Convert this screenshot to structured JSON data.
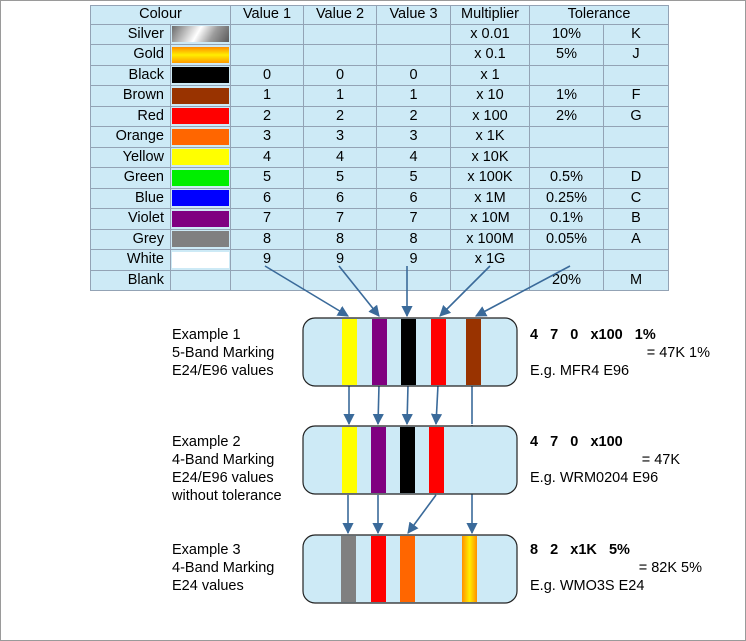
{
  "table": {
    "headers": [
      "Colour",
      "Value 1",
      "Value 2",
      "Value 3",
      "Multiplier",
      "Tolerance"
    ],
    "rows": [
      {
        "colour": "Silver",
        "swatch": "silver",
        "v1": "",
        "v2": "",
        "v3": "",
        "mult": "x 0.01",
        "tol": "10%",
        "code": "K"
      },
      {
        "colour": "Gold",
        "swatch": "gold",
        "v1": "",
        "v2": "",
        "v3": "",
        "mult": "x 0.1",
        "tol": "5%",
        "code": "J"
      },
      {
        "colour": "Black",
        "swatch": "#000000",
        "v1": "0",
        "v2": "0",
        "v3": "0",
        "mult": "x 1",
        "tol": "",
        "code": ""
      },
      {
        "colour": "Brown",
        "swatch": "#993300",
        "v1": "1",
        "v2": "1",
        "v3": "1",
        "mult": "x 10",
        "tol": "1%",
        "code": "F"
      },
      {
        "colour": "Red",
        "swatch": "#ff0000",
        "v1": "2",
        "v2": "2",
        "v3": "2",
        "mult": "x 100",
        "tol": "2%",
        "code": "G"
      },
      {
        "colour": "Orange",
        "swatch": "#ff6600",
        "v1": "3",
        "v2": "3",
        "v3": "3",
        "mult": "x 1K",
        "tol": "",
        "code": ""
      },
      {
        "colour": "Yellow",
        "swatch": "#ffff00",
        "v1": "4",
        "v2": "4",
        "v3": "4",
        "mult": "x 10K",
        "tol": "",
        "code": ""
      },
      {
        "colour": "Green",
        "swatch": "#00ee00",
        "v1": "5",
        "v2": "5",
        "v3": "5",
        "mult": "x 100K",
        "tol": "0.5%",
        "code": "D"
      },
      {
        "colour": "Blue",
        "swatch": "#0000ff",
        "v1": "6",
        "v2": "6",
        "v3": "6",
        "mult": "x 1M",
        "tol": "0.25%",
        "code": "C"
      },
      {
        "colour": "Violet",
        "swatch": "#800080",
        "v1": "7",
        "v2": "7",
        "v3": "7",
        "mult": "x 10M",
        "tol": "0.1%",
        "code": "B"
      },
      {
        "colour": "Grey",
        "swatch": "#808080",
        "v1": "8",
        "v2": "8",
        "v3": "8",
        "mult": "x 100M",
        "tol": "0.05%",
        "code": "A"
      },
      {
        "colour": "White",
        "swatch": "#ffffff",
        "v1": "9",
        "v2": "9",
        "v3": "9",
        "mult": "x 1G",
        "tol": "",
        "code": ""
      },
      {
        "colour": "Blank",
        "swatch": "#cdeaf6",
        "v1": "",
        "v2": "",
        "v3": "",
        "mult": "",
        "tol": "20%",
        "code": "M"
      }
    ]
  },
  "examples": [
    {
      "title": "Example 1",
      "line2": "5-Band Marking",
      "line3": "E24/E96 values",
      "line4": "",
      "code": "4   7   0   x100   1%",
      "result": "= 47K 1%",
      "eg": "E.g. MFR4 E96",
      "bands": [
        "#ffff00",
        "#800080",
        "#000000",
        "#ff0000",
        "#993300"
      ]
    },
    {
      "title": "Example 2",
      "line2": "4-Band Marking",
      "line3": "E24/E96 values",
      "line4": "without tolerance",
      "code": "4   7   0   x100",
      "result": "= 47K",
      "eg": "E.g. WRM0204 E96",
      "bands": [
        "#ffff00",
        "#800080",
        "#000000",
        "#ff0000"
      ]
    },
    {
      "title": "Example 3",
      "line2": "4-Band Marking",
      "line3": "E24 values",
      "line4": "",
      "code": "8   2   x1K   5%",
      "result": "= 82K 5%",
      "eg": "E.g. WMO3S E24",
      "bands": [
        "#808080",
        "#ff0000",
        "#ff6600",
        "gold"
      ]
    }
  ],
  "colors": {
    "table_bg": "#cdeaf6",
    "resistor_body": "#cdeaf6",
    "arrow": "#3a6a9a"
  }
}
